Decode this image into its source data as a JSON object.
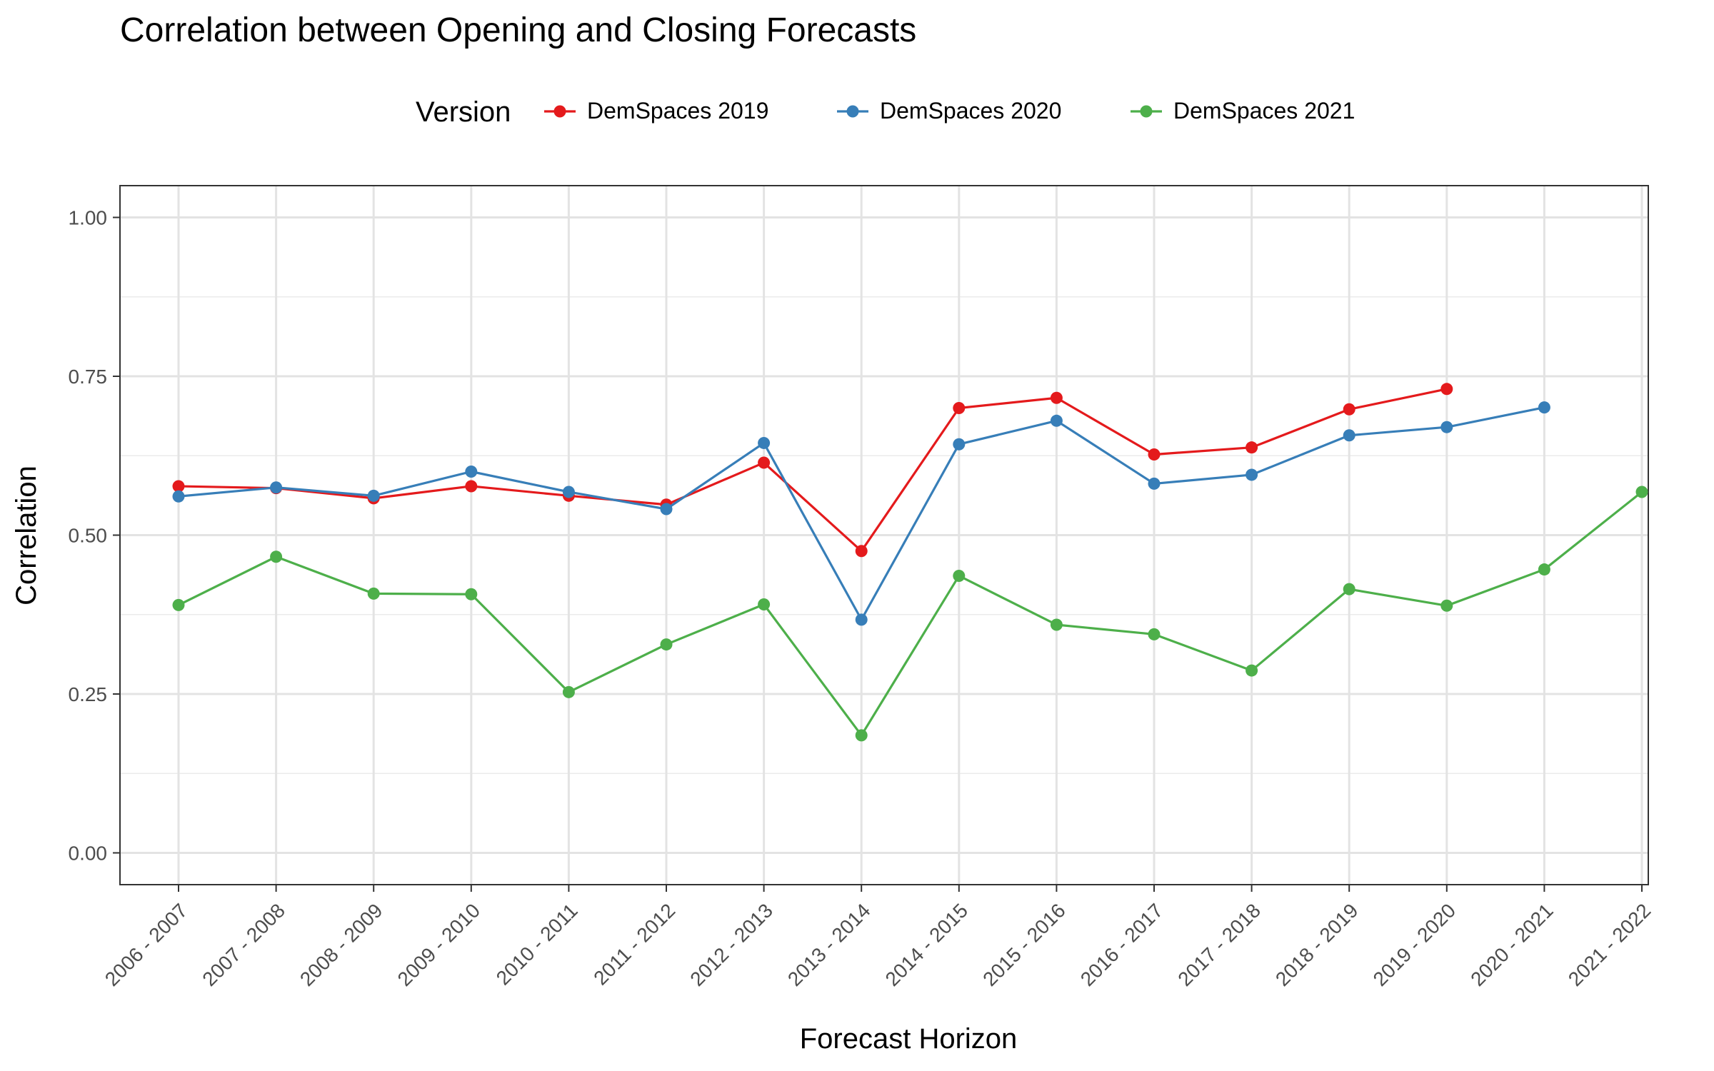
{
  "chart_data": {
    "type": "line",
    "title": "Correlation between Opening and Closing Forecasts",
    "xlabel": "Forecast Horizon",
    "ylabel": "Correlation",
    "legend_title": "Version",
    "legend_position": "top",
    "grid": true,
    "ylim": [
      -0.05,
      1.05
    ],
    "yticks": [
      0,
      0.25,
      0.5,
      0.75,
      1
    ],
    "ytick_labels": [
      "0.00",
      "0.25",
      "0.50",
      "0.75",
      "1.00"
    ],
    "categories": [
      "2006 - 2007",
      "2007 - 2008",
      "2008 - 2009",
      "2009 - 2010",
      "2010 - 2011",
      "2011 - 2012",
      "2012 - 2013",
      "2013 - 2014",
      "2014 - 2015",
      "2015 - 2016",
      "2016 - 2017",
      "2017 - 2018",
      "2018 - 2019",
      "2019 - 2020",
      "2020 - 2021",
      "2021 - 2022"
    ],
    "series": [
      {
        "name": "DemSpaces 2019",
        "color": "#E41A1C",
        "values": [
          0.577,
          0.574,
          0.558,
          0.577,
          0.562,
          0.548,
          0.614,
          0.475,
          0.7,
          0.716,
          0.627,
          0.638,
          0.698,
          0.73,
          null,
          null
        ]
      },
      {
        "name": "DemSpaces 2020",
        "color": "#377EB8",
        "values": [
          0.561,
          0.575,
          0.562,
          0.6,
          0.568,
          0.541,
          0.645,
          0.367,
          0.643,
          0.68,
          0.581,
          0.595,
          0.657,
          0.67,
          0.701,
          null
        ]
      },
      {
        "name": "DemSpaces 2021",
        "color": "#4DAF4A",
        "values": [
          0.39,
          0.466,
          0.408,
          0.407,
          0.253,
          0.328,
          0.391,
          0.185,
          0.436,
          0.359,
          0.344,
          0.287,
          0.415,
          0.389,
          0.446,
          0.568
        ]
      }
    ]
  }
}
